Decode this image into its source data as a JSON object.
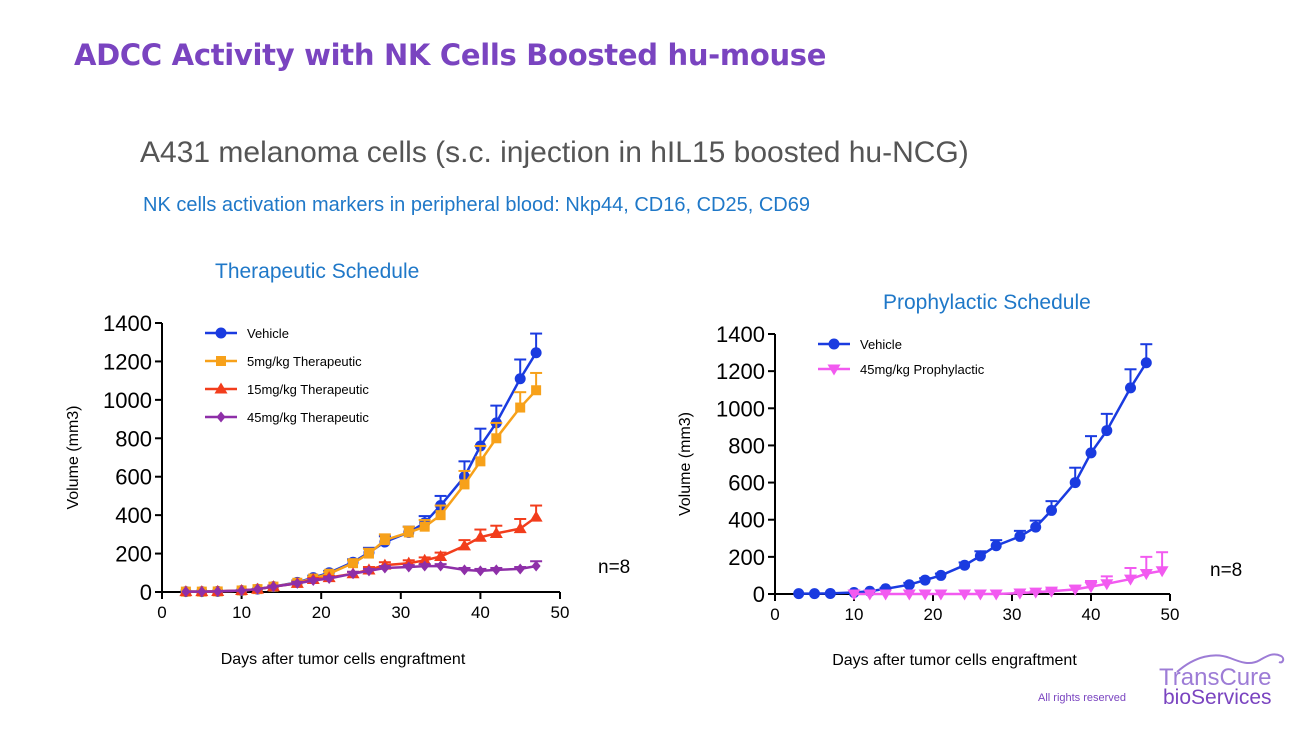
{
  "slide": {
    "title": "ADCC Activity with NK Cells Boosted hu-mouse",
    "subtitle": "A431 melanoma cells (s.c. injection in hIL15 boosted hu-NCG)",
    "markers": "NK cells activation markers in peripheral blood: Nkp44, CD16, CD25, CD69",
    "footer": "All rights reserved",
    "logo_line1": "TransCure",
    "logo_line2": "bioServices"
  },
  "colors": {
    "title": "#7a44c0",
    "blue_text": "#1f78c8"
  },
  "chart_data": [
    {
      "type": "line",
      "title": "Therapeutic Schedule",
      "xlabel": "Days after tumor cells engraftment",
      "ylabel": "Volume (mm3)",
      "xlim": [
        0,
        50
      ],
      "ylim": [
        0,
        1400
      ],
      "xticks": [
        0,
        10,
        20,
        30,
        40,
        50
      ],
      "yticks": [
        0,
        200,
        400,
        600,
        800,
        1000,
        1200,
        1400
      ],
      "annotation": "n=8",
      "legend_position": "top-left",
      "series": [
        {
          "name": "Vehicle",
          "color": "#1a3be0",
          "marker": "circle",
          "x": [
            3,
            5,
            7,
            10,
            12,
            14,
            17,
            19,
            21,
            24,
            26,
            28,
            31,
            33,
            35,
            38,
            40,
            42,
            45,
            47
          ],
          "y": [
            2,
            2,
            3,
            8,
            15,
            28,
            50,
            75,
            100,
            155,
            205,
            260,
            310,
            360,
            450,
            600,
            760,
            880,
            1110,
            1245
          ],
          "err": [
            0,
            0,
            0,
            0,
            0,
            5,
            10,
            10,
            10,
            15,
            25,
            30,
            30,
            35,
            50,
            80,
            90,
            90,
            100,
            100
          ]
        },
        {
          "name": "5mg/kg Therapeutic",
          "color": "#f7a11a",
          "marker": "square",
          "x": [
            3,
            5,
            7,
            10,
            12,
            14,
            17,
            19,
            21,
            24,
            26,
            28,
            31,
            33,
            35,
            38,
            40,
            42,
            45,
            47
          ],
          "y": [
            2,
            2,
            3,
            8,
            15,
            28,
            48,
            70,
            95,
            150,
            200,
            270,
            310,
            340,
            400,
            560,
            680,
            800,
            960,
            1050
          ],
          "err": [
            0,
            0,
            0,
            0,
            0,
            5,
            10,
            10,
            10,
            15,
            25,
            30,
            30,
            35,
            50,
            70,
            80,
            80,
            80,
            90
          ]
        },
        {
          "name": "15mg/kg Therapeutic",
          "color": "#f23d1c",
          "marker": "triangle-up",
          "x": [
            3,
            5,
            7,
            10,
            12,
            14,
            17,
            19,
            21,
            24,
            26,
            28,
            31,
            33,
            35,
            38,
            40,
            42,
            45,
            47
          ],
          "y": [
            2,
            2,
            3,
            8,
            15,
            28,
            45,
            65,
            75,
            95,
            115,
            140,
            150,
            165,
            185,
            240,
            285,
            305,
            330,
            390
          ],
          "err": [
            0,
            0,
            0,
            0,
            0,
            5,
            8,
            8,
            8,
            10,
            15,
            15,
            15,
            15,
            20,
            30,
            40,
            40,
            50,
            60
          ]
        },
        {
          "name": "45mg/kg Therapeutic",
          "color": "#8e2fa8",
          "marker": "diamond",
          "x": [
            3,
            5,
            7,
            10,
            12,
            14,
            17,
            19,
            21,
            24,
            26,
            28,
            31,
            33,
            35,
            38,
            40,
            42,
            45,
            47
          ],
          "y": [
            2,
            2,
            3,
            8,
            15,
            28,
            45,
            60,
            70,
            95,
            110,
            125,
            130,
            135,
            135,
            115,
            110,
            115,
            120,
            135
          ],
          "err": [
            0,
            0,
            0,
            0,
            0,
            5,
            8,
            8,
            8,
            10,
            10,
            10,
            10,
            10,
            10,
            10,
            10,
            10,
            10,
            25
          ]
        }
      ]
    },
    {
      "type": "line",
      "title": "Prophylactic Schedule",
      "xlabel": "Days after tumor cells engraftment",
      "ylabel": "Volume (mm3)",
      "xlim": [
        0,
        50
      ],
      "ylim": [
        0,
        1400
      ],
      "xticks": [
        0,
        10,
        20,
        30,
        40,
        50
      ],
      "yticks": [
        0,
        200,
        400,
        600,
        800,
        1000,
        1200,
        1400
      ],
      "annotation": "n=8",
      "legend_position": "top-left",
      "series": [
        {
          "name": "Vehicle",
          "color": "#1a3be0",
          "marker": "circle",
          "x": [
            3,
            5,
            7,
            10,
            12,
            14,
            17,
            19,
            21,
            24,
            26,
            28,
            31,
            33,
            35,
            38,
            40,
            42,
            45,
            47
          ],
          "y": [
            2,
            2,
            3,
            8,
            15,
            28,
            50,
            75,
            100,
            155,
            205,
            260,
            310,
            360,
            450,
            600,
            760,
            880,
            1110,
            1245
          ],
          "err": [
            0,
            0,
            0,
            0,
            0,
            5,
            10,
            10,
            10,
            15,
            25,
            30,
            30,
            35,
            50,
            80,
            90,
            90,
            100,
            100
          ]
        },
        {
          "name": "45mg/kg Prophylactic",
          "color": "#f25af0",
          "marker": "triangle-down",
          "x": [
            10,
            12,
            14,
            17,
            19,
            21,
            24,
            26,
            28,
            31,
            33,
            35,
            38,
            40,
            42,
            45,
            47,
            49
          ],
          "y": [
            0,
            0,
            0,
            0,
            0,
            0,
            0,
            0,
            0,
            5,
            10,
            15,
            25,
            40,
            55,
            80,
            110,
            125
          ],
          "err": [
            0,
            0,
            0,
            0,
            0,
            0,
            0,
            0,
            0,
            5,
            5,
            10,
            20,
            30,
            40,
            60,
            90,
            100
          ]
        }
      ]
    }
  ]
}
